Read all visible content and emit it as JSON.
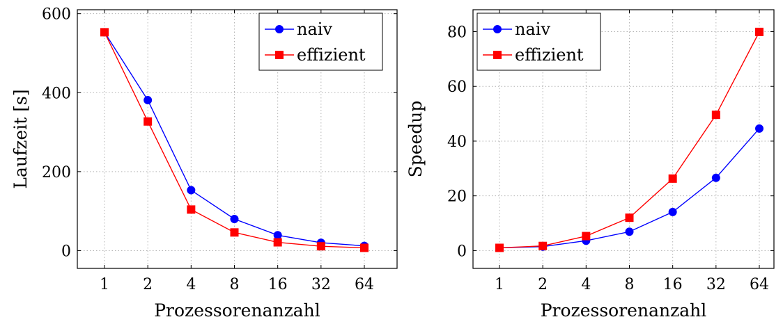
{
  "chart_data": [
    {
      "type": "line",
      "title": "",
      "xlabel": "Prozessorenanzahl",
      "ylabel": "Laufzeit [s]",
      "categories": [
        "1",
        "2",
        "4",
        "8",
        "16",
        "32",
        "64"
      ],
      "ylim": [
        -45,
        610
      ],
      "yticks": [
        0,
        200,
        400,
        600
      ],
      "grid": true,
      "legend_position": "top-right",
      "series": [
        {
          "name": "naiv",
          "color": "#0000ff",
          "marker": "circle",
          "values": [
            553,
            381,
            153,
            80,
            39,
            20,
            12
          ]
        },
        {
          "name": "effizient",
          "color": "#ff0000",
          "marker": "square",
          "values": [
            553,
            327,
            104,
            46,
            21,
            11,
            7
          ]
        }
      ]
    },
    {
      "type": "line",
      "title": "",
      "xlabel": "Prozessorenanzahl",
      "ylabel": "Speedup",
      "categories": [
        "1",
        "2",
        "4",
        "8",
        "16",
        "32",
        "64"
      ],
      "ylim": [
        -6.5,
        88
      ],
      "yticks": [
        0,
        20,
        40,
        60,
        80
      ],
      "grid": true,
      "legend_position": "top-left",
      "series": [
        {
          "name": "naiv",
          "color": "#0000ff",
          "marker": "circle",
          "values": [
            1,
            1.45,
            3.6,
            6.9,
            14.1,
            26.6,
            44.6
          ]
        },
        {
          "name": "effizient",
          "color": "#ff0000",
          "marker": "square",
          "values": [
            1,
            1.7,
            5.3,
            12.0,
            26.3,
            49.6,
            79.9
          ]
        }
      ]
    }
  ]
}
